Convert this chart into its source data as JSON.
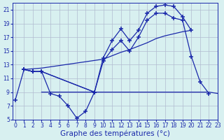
{
  "background_color": "#d8f0f0",
  "grid_color": "#b0bcd0",
  "line_color": "#1a28aa",
  "xlabel": "Graphe des températures (°c)",
  "xlabel_fontsize": 7.5,
  "ylim": [
    5,
    22
  ],
  "xlim": [
    -0.3,
    23
  ],
  "yticks": [
    5,
    7,
    9,
    11,
    13,
    15,
    17,
    19,
    21
  ],
  "xticks": [
    0,
    1,
    2,
    3,
    4,
    5,
    6,
    7,
    8,
    9,
    10,
    11,
    12,
    13,
    14,
    15,
    16,
    17,
    18,
    19,
    20,
    21,
    22,
    23
  ],
  "curve_dip_x": [
    0,
    1,
    2,
    3,
    4,
    5,
    6,
    7,
    8,
    9
  ],
  "curve_dip_y": [
    7.8,
    12.3,
    12.0,
    12.0,
    8.8,
    8.4,
    7.0,
    5.2,
    6.2,
    9.0
  ],
  "curve_top_x": [
    1,
    2,
    3,
    9,
    10,
    11,
    12,
    13,
    14,
    15,
    16,
    17,
    18,
    19,
    20
  ],
  "curve_top_y": [
    12.3,
    12.0,
    12.0,
    9.0,
    14.0,
    16.5,
    18.2,
    16.5,
    18.0,
    20.5,
    21.5,
    21.7,
    21.5,
    20.0,
    18.0
  ],
  "curve_mid_x": [
    1,
    2,
    3,
    9,
    10,
    11,
    12,
    13,
    14,
    15,
    16,
    17,
    18,
    19,
    20,
    21,
    22
  ],
  "curve_mid_y": [
    12.3,
    12.0,
    12.0,
    9.0,
    13.5,
    15.2,
    16.5,
    15.0,
    17.0,
    19.5,
    20.5,
    20.5,
    19.8,
    19.5,
    14.2,
    10.5,
    8.8
  ],
  "curve_trendA_x": [
    1,
    3,
    10,
    11,
    12,
    13,
    14,
    15,
    16,
    17,
    18,
    19,
    20
  ],
  "curve_trendA_y": [
    12.3,
    12.5,
    13.8,
    14.3,
    14.8,
    15.2,
    15.7,
    16.2,
    16.8,
    17.2,
    17.5,
    17.8,
    18.0
  ],
  "curve_flat_x": [
    3,
    4,
    5,
    6,
    7,
    8,
    9,
    10,
    11,
    12,
    13,
    14,
    15,
    16,
    17,
    18,
    19,
    20,
    21,
    22,
    23
  ],
  "curve_flat_y": [
    9.0,
    9.0,
    9.0,
    9.0,
    9.0,
    9.0,
    9.0,
    9.0,
    9.0,
    9.0,
    9.0,
    9.0,
    9.0,
    9.0,
    9.0,
    9.0,
    9.0,
    9.0,
    9.0,
    9.0,
    8.8
  ]
}
